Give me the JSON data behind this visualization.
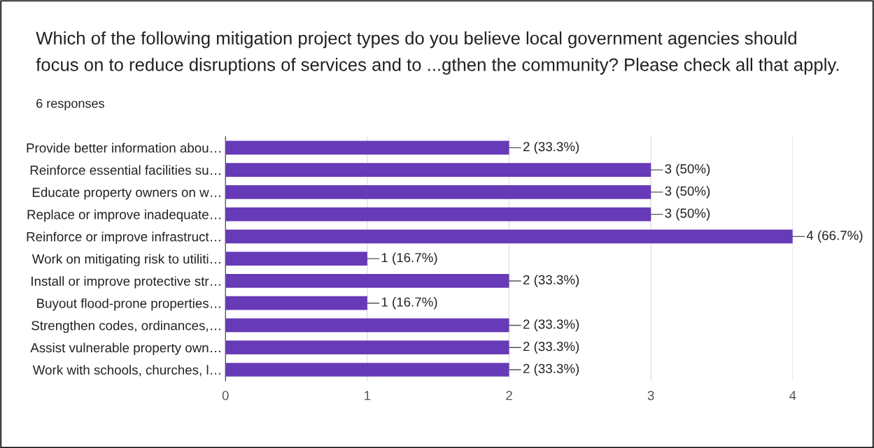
{
  "chart_data": {
    "type": "bar",
    "orientation": "horizontal",
    "title": "Which of the following mitigation project types do you believe local government agencies should\nfocus on to reduce disruptions of services and to ...gthen the community? Please check all that apply.",
    "subtitle": "6 responses",
    "categories": [
      "Provide better information abou…",
      "Reinforce essential facilities su…",
      "Educate property owners on w…",
      "Replace or improve inadequate…",
      "Reinforce or improve infrastruct…",
      "Work on mitigating risk to utiliti…",
      "Install or improve protective str…",
      "Buyout flood-prone properties…",
      "Strengthen codes, ordinances,…",
      "Assist vulnerable property own…",
      "Work with schools, churches, l…"
    ],
    "values": [
      2,
      3,
      3,
      3,
      4,
      1,
      2,
      1,
      2,
      2,
      2
    ],
    "value_labels": [
      "2 (33.3%)",
      "3 (50%)",
      "3 (50%)",
      "3 (50%)",
      "4 (66.7%)",
      "1 (16.7%)",
      "2 (33.3%)",
      "1 (16.7%)",
      "2 (33.3%)",
      "2 (33.3%)",
      "2 (33.3%)"
    ],
    "color": "#673ab7",
    "xlim": [
      0,
      4
    ],
    "xticks": [
      0,
      1,
      2,
      3,
      4
    ],
    "grid": "x"
  }
}
